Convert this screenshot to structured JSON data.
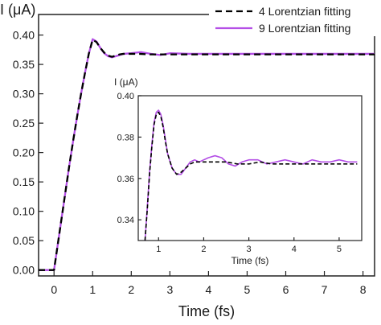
{
  "chart_data": [
    {
      "type": "line",
      "panel": "main",
      "ylabel": "I (μA)",
      "xlabel": "Time (fs)",
      "xlim": [
        -0.4,
        8.3
      ],
      "ylim": [
        -0.01,
        0.435
      ],
      "x_ticks": [
        0,
        1,
        2,
        3,
        4,
        5,
        6,
        7,
        8
      ],
      "x_tick_labels": [
        "0",
        "1",
        "2",
        "3",
        "4",
        "5",
        "6",
        "7",
        "8"
      ],
      "y_ticks": [
        0.0,
        0.05,
        0.1,
        0.15,
        0.2,
        0.25,
        0.3,
        0.35,
        0.4
      ],
      "y_tick_labels": [
        "0.00",
        "0.05",
        "0.10",
        "0.15",
        "0.20",
        "0.25",
        "0.30",
        "0.35",
        "0.40"
      ],
      "legend": {
        "position": "top-right"
      },
      "series": [
        {
          "name": "4  Lorentzian fitting",
          "color": "#000000",
          "style": "dashed",
          "x": [
            -0.4,
            0.0,
            0.1,
            0.2,
            0.3,
            0.4,
            0.5,
            0.6,
            0.7,
            0.8,
            0.9,
            1.0,
            1.1,
            1.2,
            1.3,
            1.4,
            1.5,
            1.6,
            1.7,
            1.8,
            2.0,
            2.2,
            2.5,
            2.8,
            3.0,
            3.5,
            4.0,
            5.0,
            6.0,
            7.0,
            8.3
          ],
          "y": [
            0.0,
            0.0,
            0.045,
            0.09,
            0.135,
            0.18,
            0.222,
            0.262,
            0.3,
            0.335,
            0.368,
            0.392,
            0.388,
            0.378,
            0.37,
            0.365,
            0.363,
            0.365,
            0.367,
            0.368,
            0.368,
            0.368,
            0.367,
            0.367,
            0.367,
            0.367,
            0.367,
            0.367,
            0.367,
            0.367,
            0.367
          ]
        },
        {
          "name": "9  Lorentzian fitting",
          "color": "#b44fe6",
          "style": "solid",
          "x": [
            -0.4,
            0.0,
            0.1,
            0.2,
            0.3,
            0.4,
            0.5,
            0.6,
            0.7,
            0.8,
            0.9,
            1.0,
            1.1,
            1.2,
            1.3,
            1.4,
            1.5,
            1.6,
            1.7,
            1.8,
            2.0,
            2.25,
            2.5,
            2.75,
            3.0,
            3.5,
            4.0,
            5.0,
            6.0,
            7.0,
            8.3
          ],
          "y": [
            0.0,
            0.0,
            0.045,
            0.09,
            0.135,
            0.18,
            0.222,
            0.262,
            0.3,
            0.335,
            0.368,
            0.393,
            0.389,
            0.378,
            0.369,
            0.364,
            0.362,
            0.364,
            0.366,
            0.368,
            0.369,
            0.371,
            0.368,
            0.366,
            0.369,
            0.368,
            0.368,
            0.368,
            0.368,
            0.368,
            0.368
          ]
        }
      ]
    },
    {
      "type": "line",
      "panel": "inset",
      "ylabel": "I (μA)",
      "xlabel": "Time (fs)",
      "xlim": [
        0.55,
        5.5
      ],
      "ylim": [
        0.33,
        0.4
      ],
      "x_ticks": [
        1,
        2,
        3,
        4,
        5
      ],
      "x_tick_labels": [
        "1",
        "2",
        "3",
        "4",
        "5"
      ],
      "y_ticks": [
        0.34,
        0.36,
        0.38,
        0.4
      ],
      "y_tick_labels": [
        "0.34",
        "0.36",
        "0.38",
        "0.40"
      ],
      "series": [
        {
          "color": "#000000",
          "style": "dashed",
          "x": [
            0.7,
            0.75,
            0.8,
            0.85,
            0.9,
            0.95,
            1.0,
            1.05,
            1.1,
            1.15,
            1.2,
            1.3,
            1.4,
            1.5,
            1.6,
            1.7,
            1.8,
            1.9,
            2.0,
            2.25,
            2.5,
            2.75,
            3.0,
            3.25,
            3.5,
            3.75,
            4.0,
            4.25,
            4.5,
            4.75,
            5.0,
            5.4
          ],
          "y": [
            0.33,
            0.345,
            0.362,
            0.375,
            0.386,
            0.391,
            0.392,
            0.39,
            0.385,
            0.378,
            0.372,
            0.365,
            0.362,
            0.363,
            0.365,
            0.367,
            0.368,
            0.368,
            0.368,
            0.368,
            0.368,
            0.367,
            0.367,
            0.368,
            0.367,
            0.367,
            0.367,
            0.367,
            0.367,
            0.367,
            0.367,
            0.367
          ]
        },
        {
          "color": "#b44fe6",
          "style": "solid",
          "x": [
            0.7,
            0.75,
            0.8,
            0.85,
            0.9,
            0.95,
            1.0,
            1.05,
            1.1,
            1.15,
            1.2,
            1.3,
            1.4,
            1.5,
            1.6,
            1.7,
            1.8,
            1.9,
            2.0,
            2.1,
            2.25,
            2.4,
            2.55,
            2.7,
            2.85,
            3.0,
            3.2,
            3.4,
            3.6,
            3.8,
            4.0,
            4.2,
            4.4,
            4.6,
            4.8,
            5.0,
            5.2,
            5.4
          ],
          "y": [
            0.33,
            0.346,
            0.363,
            0.376,
            0.387,
            0.392,
            0.393,
            0.391,
            0.386,
            0.379,
            0.372,
            0.365,
            0.362,
            0.362,
            0.365,
            0.368,
            0.369,
            0.368,
            0.369,
            0.37,
            0.371,
            0.37,
            0.367,
            0.366,
            0.368,
            0.369,
            0.369,
            0.367,
            0.368,
            0.369,
            0.368,
            0.367,
            0.369,
            0.368,
            0.368,
            0.369,
            0.368,
            0.368
          ]
        }
      ]
    }
  ]
}
